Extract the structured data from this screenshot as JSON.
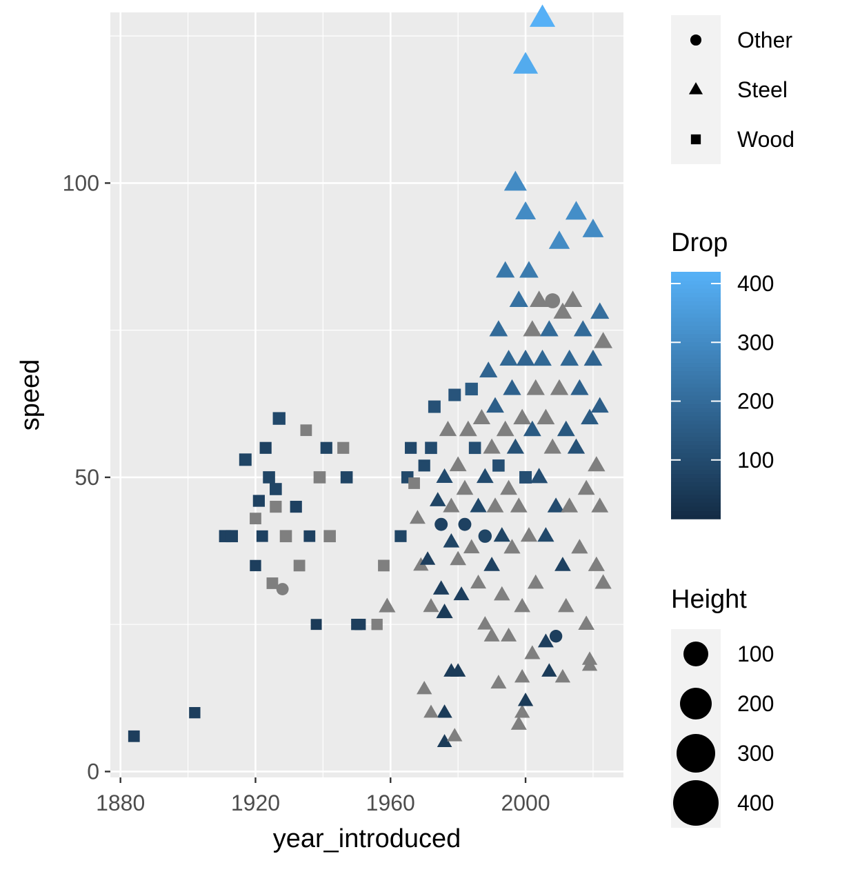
{
  "chart_data": {
    "type": "scatter",
    "xlabel": "year_introduced",
    "ylabel": "speed",
    "xlim": [
      1877,
      2029
    ],
    "ylim": [
      -1,
      129
    ],
    "x_ticks": [
      1880,
      1920,
      1960,
      2000
    ],
    "y_ticks": [
      0,
      50,
      100
    ],
    "grid": true,
    "background": "#ebebeb",
    "na_color": "#7f7f7f",
    "shape_legend": {
      "title": "",
      "entries": [
        {
          "label": "Other",
          "shape": "circle"
        },
        {
          "label": "Steel",
          "shape": "triangle"
        },
        {
          "label": "Wood",
          "shape": "square"
        }
      ]
    },
    "color_legend": {
      "title": "Drop",
      "breaks": [
        100,
        200,
        300,
        400
      ],
      "range": [
        0,
        420
      ],
      "low_color": "#132b43",
      "high_color": "#56b1f7"
    },
    "size_legend": {
      "title": "Height",
      "breaks": [
        100,
        200,
        300,
        400
      ]
    },
    "points": [
      {
        "x": 1884,
        "y": 6,
        "type": "Wood",
        "drop": 60,
        "height": 80
      },
      {
        "x": 1902,
        "y": 10,
        "type": "Wood",
        "drop": 60,
        "height": 70
      },
      {
        "x": 1911,
        "y": 40,
        "type": "Wood",
        "drop": 70,
        "height": 100
      },
      {
        "x": 1913,
        "y": 40,
        "type": "Wood",
        "drop": 70,
        "height": 100
      },
      {
        "x": 1917,
        "y": 53,
        "type": "Wood",
        "drop": 80,
        "height": 110
      },
      {
        "x": 1920,
        "y": 35,
        "type": "Wood",
        "drop": 60,
        "height": 70
      },
      {
        "x": 1920,
        "y": 43,
        "type": "Wood",
        "drop": null,
        "height": 80
      },
      {
        "x": 1921,
        "y": 46,
        "type": "Wood",
        "drop": 70,
        "height": 90
      },
      {
        "x": 1922,
        "y": 40,
        "type": "Wood",
        "drop": 70,
        "height": 80
      },
      {
        "x": 1923,
        "y": 55,
        "type": "Wood",
        "drop": 70,
        "height": 90
      },
      {
        "x": 1924,
        "y": 50,
        "type": "Wood",
        "drop": 80,
        "height": 100
      },
      {
        "x": 1925,
        "y": 32,
        "type": "Wood",
        "drop": null,
        "height": 80
      },
      {
        "x": 1926,
        "y": 45,
        "type": "Wood",
        "drop": null,
        "height": 90
      },
      {
        "x": 1926,
        "y": 48,
        "type": "Wood",
        "drop": 80,
        "height": 100
      },
      {
        "x": 1927,
        "y": 60,
        "type": "Wood",
        "drop": 90,
        "height": 120
      },
      {
        "x": 1928,
        "y": 31,
        "type": "Other",
        "drop": null,
        "height": 60
      },
      {
        "x": 1929,
        "y": 40,
        "type": "Wood",
        "drop": null,
        "height": 100
      },
      {
        "x": 1932,
        "y": 45,
        "type": "Wood",
        "drop": 70,
        "height": 90
      },
      {
        "x": 1933,
        "y": 35,
        "type": "Wood",
        "drop": null,
        "height": 80
      },
      {
        "x": 1935,
        "y": 58,
        "type": "Wood",
        "drop": null,
        "height": 80
      },
      {
        "x": 1936,
        "y": 40,
        "type": "Wood",
        "drop": 70,
        "height": 80
      },
      {
        "x": 1938,
        "y": 25,
        "type": "Wood",
        "drop": 50,
        "height": 60
      },
      {
        "x": 1939,
        "y": 50,
        "type": "Wood",
        "drop": null,
        "height": 100
      },
      {
        "x": 1941,
        "y": 55,
        "type": "Wood",
        "drop": 80,
        "height": 90
      },
      {
        "x": 1942,
        "y": 40,
        "type": "Wood",
        "drop": null,
        "height": 100
      },
      {
        "x": 1946,
        "y": 55,
        "type": "Wood",
        "drop": null,
        "height": 90
      },
      {
        "x": 1947,
        "y": 50,
        "type": "Wood",
        "drop": 80,
        "height": 100
      },
      {
        "x": 1950,
        "y": 25,
        "type": "Wood",
        "drop": 60,
        "height": 70
      },
      {
        "x": 1951,
        "y": 25,
        "type": "Wood",
        "drop": 60,
        "height": 70
      },
      {
        "x": 1956,
        "y": 25,
        "type": "Wood",
        "drop": null,
        "height": 70
      },
      {
        "x": 1958,
        "y": 35,
        "type": "Wood",
        "drop": null,
        "height": 80
      },
      {
        "x": 1959,
        "y": 28,
        "type": "Steel",
        "drop": null,
        "height": 90
      },
      {
        "x": 1963,
        "y": 40,
        "type": "Wood",
        "drop": 80,
        "height": 90
      },
      {
        "x": 1965,
        "y": 50,
        "type": "Wood",
        "drop": 90,
        "height": 100
      },
      {
        "x": 1966,
        "y": 55,
        "type": "Wood",
        "drop": 90,
        "height": 90
      },
      {
        "x": 1967,
        "y": 49,
        "type": "Wood",
        "drop": null,
        "height": 80
      },
      {
        "x": 1968,
        "y": 43,
        "type": "Steel",
        "drop": null,
        "height": 70
      },
      {
        "x": 1969,
        "y": 35,
        "type": "Steel",
        "drop": null,
        "height": 60
      },
      {
        "x": 1970,
        "y": 52,
        "type": "Wood",
        "drop": 90,
        "height": 90
      },
      {
        "x": 1971,
        "y": 36,
        "type": "Steel",
        "drop": 60,
        "height": 60
      },
      {
        "x": 1972,
        "y": 55,
        "type": "Wood",
        "drop": 100,
        "height": 100
      },
      {
        "x": 1972,
        "y": 28,
        "type": "Steel",
        "drop": null,
        "height": 70
      },
      {
        "x": 1973,
        "y": 62,
        "type": "Wood",
        "drop": 120,
        "height": 110
      },
      {
        "x": 1974,
        "y": 46,
        "type": "Steel",
        "drop": 80,
        "height": 80
      },
      {
        "x": 1975,
        "y": 31,
        "type": "Steel",
        "drop": 60,
        "height": 80
      },
      {
        "x": 1975,
        "y": 42,
        "type": "Other",
        "drop": 70,
        "height": 80
      },
      {
        "x": 1976,
        "y": 27,
        "type": "Steel",
        "drop": 50,
        "height": 90
      },
      {
        "x": 1976,
        "y": 50,
        "type": "Steel",
        "drop": 100,
        "height": 90
      },
      {
        "x": 1977,
        "y": 58,
        "type": "Steel",
        "drop": null,
        "height": 110
      },
      {
        "x": 1978,
        "y": 45,
        "type": "Steel",
        "drop": null,
        "height": 90
      },
      {
        "x": 1978,
        "y": 39,
        "type": "Steel",
        "drop": 80,
        "height": 80
      },
      {
        "x": 1979,
        "y": 64,
        "type": "Wood",
        "drop": 130,
        "height": 110
      },
      {
        "x": 1980,
        "y": 52,
        "type": "Steel",
        "drop": null,
        "height": 100
      },
      {
        "x": 1980,
        "y": 36,
        "type": "Steel",
        "drop": null,
        "height": 80
      },
      {
        "x": 1981,
        "y": 30,
        "type": "Steel",
        "drop": 60,
        "height": 70
      },
      {
        "x": 1982,
        "y": 48,
        "type": "Steel",
        "drop": null,
        "height": 100
      },
      {
        "x": 1982,
        "y": 42,
        "type": "Other",
        "drop": 70,
        "height": 80
      },
      {
        "x": 1983,
        "y": 58,
        "type": "Steel",
        "drop": null,
        "height": 120
      },
      {
        "x": 1984,
        "y": 38,
        "type": "Steel",
        "drop": null,
        "height": 80
      },
      {
        "x": 1984,
        "y": 65,
        "type": "Wood",
        "drop": 150,
        "height": 120
      },
      {
        "x": 1985,
        "y": 55,
        "type": "Wood",
        "drop": 110,
        "height": 100
      },
      {
        "x": 1986,
        "y": 45,
        "type": "Steel",
        "drop": 90,
        "height": 90
      },
      {
        "x": 1986,
        "y": 32,
        "type": "Steel",
        "drop": null,
        "height": 70
      },
      {
        "x": 1987,
        "y": 60,
        "type": "Steel",
        "drop": null,
        "height": 110
      },
      {
        "x": 1988,
        "y": 50,
        "type": "Steel",
        "drop": 100,
        "height": 100
      },
      {
        "x": 1988,
        "y": 40,
        "type": "Other",
        "drop": 80,
        "height": 90
      },
      {
        "x": 1989,
        "y": 68,
        "type": "Steel",
        "drop": 180,
        "height": 130
      },
      {
        "x": 1990,
        "y": 55,
        "type": "Steel",
        "drop": null,
        "height": 110
      },
      {
        "x": 1990,
        "y": 35,
        "type": "Steel",
        "drop": 70,
        "height": 80
      },
      {
        "x": 1991,
        "y": 45,
        "type": "Steel",
        "drop": null,
        "height": 100
      },
      {
        "x": 1991,
        "y": 62,
        "type": "Steel",
        "drop": 160,
        "height": 120
      },
      {
        "x": 1992,
        "y": 75,
        "type": "Steel",
        "drop": 200,
        "height": 140
      },
      {
        "x": 1992,
        "y": 52,
        "type": "Wood",
        "drop": 110,
        "height": 100
      },
      {
        "x": 1993,
        "y": 40,
        "type": "Steel",
        "drop": 80,
        "height": 90
      },
      {
        "x": 1993,
        "y": 30,
        "type": "Steel",
        "drop": null,
        "height": 80
      },
      {
        "x": 1994,
        "y": 85,
        "type": "Steel",
        "drop": 240,
        "height": 150
      },
      {
        "x": 1994,
        "y": 58,
        "type": "Steel",
        "drop": null,
        "height": 120
      },
      {
        "x": 1995,
        "y": 70,
        "type": "Steel",
        "drop": 190,
        "height": 130
      },
      {
        "x": 1995,
        "y": 48,
        "type": "Steel",
        "drop": null,
        "height": 100
      },
      {
        "x": 1996,
        "y": 65,
        "type": "Steel",
        "drop": 170,
        "height": 130
      },
      {
        "x": 1996,
        "y": 38,
        "type": "Steel",
        "drop": null,
        "height": 90
      },
      {
        "x": 1997,
        "y": 100,
        "type": "Steel",
        "drop": 300,
        "height": 310
      },
      {
        "x": 1997,
        "y": 55,
        "type": "Steel",
        "drop": 120,
        "height": 110
      },
      {
        "x": 1998,
        "y": 80,
        "type": "Steel",
        "drop": 220,
        "height": 150
      },
      {
        "x": 1998,
        "y": 45,
        "type": "Steel",
        "drop": null,
        "height": 100
      },
      {
        "x": 1999,
        "y": 60,
        "type": "Steel",
        "drop": null,
        "height": 120
      },
      {
        "x": 1999,
        "y": 28,
        "type": "Steel",
        "drop": null,
        "height": 80
      },
      {
        "x": 2000,
        "y": 120,
        "type": "Steel",
        "drop": 400,
        "height": 420
      },
      {
        "x": 2000,
        "y": 95,
        "type": "Steel",
        "drop": 300,
        "height": 220
      },
      {
        "x": 2000,
        "y": 70,
        "type": "Steel",
        "drop": 180,
        "height": 140
      },
      {
        "x": 2000,
        "y": 50,
        "type": "Wood",
        "drop": 110,
        "height": 110
      },
      {
        "x": 2001,
        "y": 85,
        "type": "Steel",
        "drop": 250,
        "height": 160
      },
      {
        "x": 2001,
        "y": 40,
        "type": "Steel",
        "drop": null,
        "height": 90
      },
      {
        "x": 2002,
        "y": 75,
        "type": "Steel",
        "drop": null,
        "height": 140
      },
      {
        "x": 2002,
        "y": 58,
        "type": "Steel",
        "drop": 150,
        "height": 120
      },
      {
        "x": 2003,
        "y": 65,
        "type": "Steel",
        "drop": null,
        "height": 130
      },
      {
        "x": 2003,
        "y": 32,
        "type": "Steel",
        "drop": null,
        "height": 80
      },
      {
        "x": 2004,
        "y": 80,
        "type": "Steel",
        "drop": null,
        "height": 150
      },
      {
        "x": 2004,
        "y": 50,
        "type": "Steel",
        "drop": 110,
        "height": 110
      },
      {
        "x": 2005,
        "y": 128,
        "type": "Steel",
        "drop": 418,
        "height": 456
      },
      {
        "x": 2005,
        "y": 70,
        "type": "Steel",
        "drop": 190,
        "height": 140
      },
      {
        "x": 2006,
        "y": 60,
        "type": "Steel",
        "drop": null,
        "height": 120
      },
      {
        "x": 2006,
        "y": 40,
        "type": "Steel",
        "drop": 90,
        "height": 90
      },
      {
        "x": 2007,
        "y": 75,
        "type": "Steel",
        "drop": 200,
        "height": 140
      },
      {
        "x": 2008,
        "y": 80,
        "type": "Other",
        "drop": null,
        "height": 150
      },
      {
        "x": 2008,
        "y": 55,
        "type": "Steel",
        "drop": null,
        "height": 110
      },
      {
        "x": 2009,
        "y": 45,
        "type": "Steel",
        "drop": 100,
        "height": 100
      },
      {
        "x": 2009,
        "y": 23,
        "type": "Other",
        "drop": 60,
        "height": 70
      },
      {
        "x": 2010,
        "y": 90,
        "type": "Steel",
        "drop": 300,
        "height": 230
      },
      {
        "x": 2010,
        "y": 65,
        "type": "Steel",
        "drop": null,
        "height": 130
      },
      {
        "x": 2011,
        "y": 78,
        "type": "Steel",
        "drop": null,
        "height": 140
      },
      {
        "x": 2011,
        "y": 35,
        "type": "Steel",
        "drop": 70,
        "height": 80
      },
      {
        "x": 2012,
        "y": 58,
        "type": "Steel",
        "drop": 140,
        "height": 120
      },
      {
        "x": 2012,
        "y": 28,
        "type": "Steel",
        "drop": null,
        "height": 80
      },
      {
        "x": 2013,
        "y": 70,
        "type": "Steel",
        "drop": 190,
        "height": 140
      },
      {
        "x": 2013,
        "y": 45,
        "type": "Steel",
        "drop": null,
        "height": 100
      },
      {
        "x": 2014,
        "y": 80,
        "type": "Steel",
        "drop": null,
        "height": 150
      },
      {
        "x": 2015,
        "y": 95,
        "type": "Steel",
        "drop": 310,
        "height": 250
      },
      {
        "x": 2015,
        "y": 55,
        "type": "Steel",
        "drop": 120,
        "height": 110
      },
      {
        "x": 2016,
        "y": 65,
        "type": "Steel",
        "drop": 170,
        "height": 130
      },
      {
        "x": 2016,
        "y": 38,
        "type": "Steel",
        "drop": null,
        "height": 90
      },
      {
        "x": 2017,
        "y": 75,
        "type": "Steel",
        "drop": 200,
        "height": 140
      },
      {
        "x": 2018,
        "y": 48,
        "type": "Steel",
        "drop": null,
        "height": 100
      },
      {
        "x": 2018,
        "y": 25,
        "type": "Steel",
        "drop": null,
        "height": 80
      },
      {
        "x": 2019,
        "y": 60,
        "type": "Steel",
        "drop": 150,
        "height": 120
      },
      {
        "x": 2019,
        "y": 18,
        "type": "Steel",
        "drop": null,
        "height": 60
      },
      {
        "x": 2020,
        "y": 92,
        "type": "Steel",
        "drop": 300,
        "height": 240
      },
      {
        "x": 2020,
        "y": 70,
        "type": "Steel",
        "drop": 180,
        "height": 140
      },
      {
        "x": 2021,
        "y": 52,
        "type": "Steel",
        "drop": null,
        "height": 110
      },
      {
        "x": 2021,
        "y": 35,
        "type": "Steel",
        "drop": null,
        "height": 90
      },
      {
        "x": 2022,
        "y": 78,
        "type": "Steel",
        "drop": 210,
        "height": 150
      },
      {
        "x": 2022,
        "y": 62,
        "type": "Steel",
        "drop": 160,
        "height": 120
      },
      {
        "x": 2022,
        "y": 45,
        "type": "Steel",
        "drop": null,
        "height": 100
      },
      {
        "x": 2023,
        "y": 73,
        "type": "Steel",
        "drop": null,
        "height": 140
      },
      {
        "x": 2023,
        "y": 32,
        "type": "Steel",
        "drop": null,
        "height": 90
      },
      {
        "x": 1978,
        "y": 17,
        "type": "Steel",
        "drop": 50,
        "height": 60
      },
      {
        "x": 1980,
        "y": 17,
        "type": "Steel",
        "drop": 50,
        "height": 60
      },
      {
        "x": 1976,
        "y": 10,
        "type": "Steel",
        "drop": 50,
        "height": 60
      },
      {
        "x": 1976,
        "y": 5,
        "type": "Steel",
        "drop": 50,
        "height": 50
      },
      {
        "x": 1979,
        "y": 6,
        "type": "Steel",
        "drop": null,
        "height": 60
      },
      {
        "x": 1970,
        "y": 14,
        "type": "Steel",
        "drop": null,
        "height": 60
      },
      {
        "x": 1972,
        "y": 10,
        "type": "Steel",
        "drop": null,
        "height": 50
      },
      {
        "x": 1998,
        "y": 8,
        "type": "Steel",
        "drop": null,
        "height": 70
      },
      {
        "x": 1999,
        "y": 10,
        "type": "Steel",
        "drop": null,
        "height": 60
      },
      {
        "x": 2000,
        "y": 12,
        "type": "Steel",
        "drop": 50,
        "height": 60
      },
      {
        "x": 1999,
        "y": 16,
        "type": "Steel",
        "drop": null,
        "height": 60
      },
      {
        "x": 1992,
        "y": 15,
        "type": "Steel",
        "drop": null,
        "height": 70
      },
      {
        "x": 2007,
        "y": 17,
        "type": "Steel",
        "drop": 50,
        "height": 60
      },
      {
        "x": 2011,
        "y": 16,
        "type": "Steel",
        "drop": null,
        "height": 60
      },
      {
        "x": 2019,
        "y": 19,
        "type": "Steel",
        "drop": null,
        "height": 60
      },
      {
        "x": 1995,
        "y": 23,
        "type": "Steel",
        "drop": null,
        "height": 70
      },
      {
        "x": 2002,
        "y": 20,
        "type": "Steel",
        "drop": null,
        "height": 70
      },
      {
        "x": 2006,
        "y": 22,
        "type": "Steel",
        "drop": 60,
        "height": 70
      },
      {
        "x": 1990,
        "y": 23,
        "type": "Steel",
        "drop": null,
        "height": 70
      },
      {
        "x": 1988,
        "y": 25,
        "type": "Steel",
        "drop": null,
        "height": 60
      }
    ]
  }
}
